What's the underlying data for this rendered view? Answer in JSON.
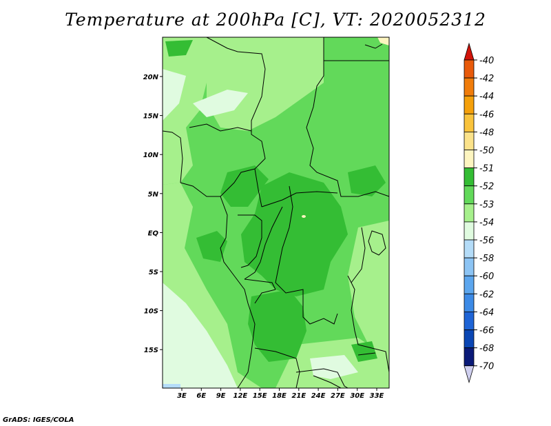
{
  "title": "Temperature at 200hPa [C], VT: 2020052312",
  "credit": "GrADS: IGES/COLA",
  "map": {
    "lon_labels": [
      "3E",
      "6E",
      "9E",
      "12E",
      "15E",
      "18E",
      "21E",
      "24E",
      "27E",
      "30E",
      "33E"
    ],
    "lat_labels": [
      "20N",
      "15N",
      "10N",
      "5N",
      "EQ",
      "5S",
      "10S",
      "15S"
    ]
  },
  "colorbar": {
    "labels": [
      "-40",
      "-42",
      "-44",
      "-46",
      "-48",
      "-50",
      "-51",
      "-52",
      "-53",
      "-54",
      "-56",
      "-58",
      "-60",
      "-62",
      "-64",
      "-66",
      "-68",
      "-70"
    ],
    "colors": [
      "#d2140a",
      "#e85a0a",
      "#f07c0a",
      "#f5a00a",
      "#f9c33c",
      "#fbe28a",
      "#fdf5c0",
      "#34bd34",
      "#62d95a",
      "#a6f08c",
      "#e0fbe0",
      "#b4dcf8",
      "#8cc4f4",
      "#5ca6ee",
      "#3c8ae6",
      "#1e64d6",
      "#0a46b4",
      "#0a1a78"
    ],
    "end_top_color": "#d2140a",
    "end_bottom_color": "#d0d0f0"
  },
  "field_colors": {
    "c52": "#34bd34",
    "c53": "#62d95a",
    "c54": "#a6f08c",
    "c56": "#e0fbe0",
    "c58": "#b4dcf8",
    "warm": "#fdf5c0"
  }
}
